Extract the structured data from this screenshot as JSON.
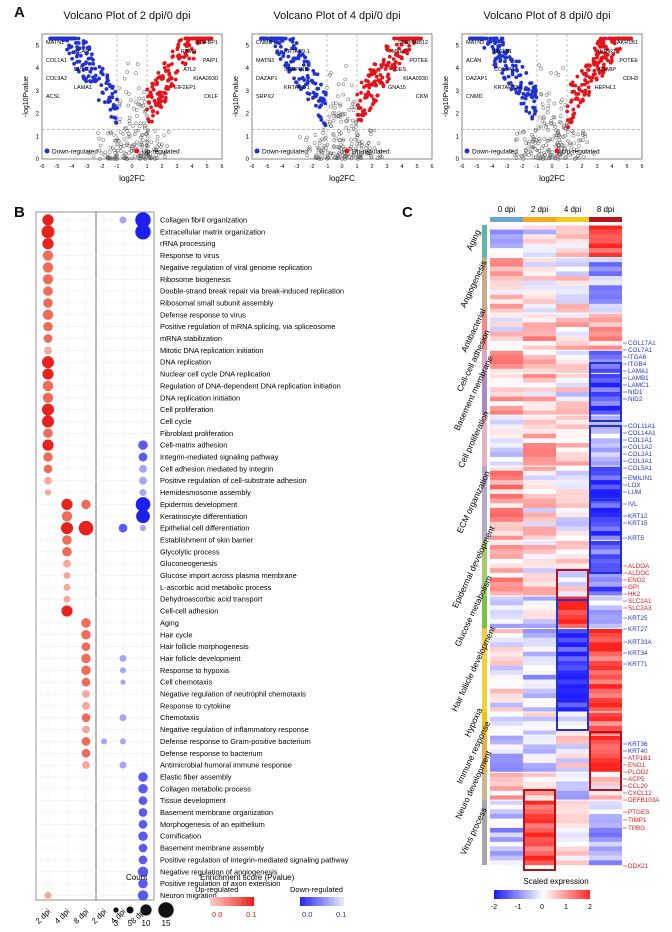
{
  "panels": {
    "a": "A",
    "b": "B",
    "c": "C"
  },
  "volcano": [
    {
      "title": "Volcano Plot of 2 dpi/0 dpi",
      "xlabel": "log2FC",
      "ylabel": "-log10Pvalue",
      "xticks": [
        "-6",
        "-5",
        "-4",
        "-3",
        "-2",
        "-1",
        "0",
        "1",
        "2",
        "3",
        "4",
        "5",
        "6"
      ],
      "yticks": [
        "0",
        "1",
        "2",
        "3",
        "4",
        "5"
      ],
      "down_labels": [
        "MATN1",
        "ACAN",
        "COL1A1",
        "EPYC",
        "COL9A2",
        "LAMA1",
        "ACSL"
      ],
      "up_labels": [
        "FGFBP1",
        "RBM3",
        "PAIP1",
        "ATL2",
        "KIAA0930",
        "EIF2EP1",
        "CKLF"
      ],
      "legend_down": "Down-regulated",
      "legend_up": "Up-regulated"
    },
    {
      "title": "Volcano Plot of 4 dpi/0 dpi",
      "xlabel": "log2FC",
      "ylabel": "-log10Pvalue",
      "xticks": [
        "-6",
        "-5",
        "-4",
        "-3",
        "-2",
        "-1",
        "0",
        "1",
        "2",
        "3",
        "4",
        "5",
        "6"
      ],
      "yticks": [
        "0",
        "1",
        "2",
        "3",
        "4",
        "5"
      ],
      "down_labels": [
        "CNMD",
        "KRTAP9-1",
        "MATN3",
        "SERPINB",
        "DAZAP1",
        "KRTAP7-1",
        "SRPX2"
      ],
      "up_labels": [
        "SERPINB12",
        "MYL1",
        "POTEE",
        "DES",
        "KIAA0930",
        "GNA15",
        "CKM"
      ],
      "legend_down": "Down-regulated",
      "legend_up": "Up-regulated"
    },
    {
      "title": "Volcano Plot of 8 dpi/0 dpi",
      "xlabel": "log2FC",
      "ylabel": "-log10Pvalue",
      "xticks": [
        "-6",
        "-5",
        "-4",
        "-3",
        "-2",
        "-1",
        "0",
        "1",
        "2",
        "3",
        "4",
        "5",
        "6"
      ],
      "yticks": [
        "0",
        "1",
        "2",
        "3",
        "4",
        "5"
      ],
      "down_labels": [
        "MATN3",
        "MATN1",
        "ACAN",
        "COL1A1",
        "DAZAP1",
        "KRTAP13-4",
        "CNMD"
      ],
      "up_labels": [
        "AKR1B1",
        "IL18R1",
        "POTEE",
        "CEMIP",
        "CDH3",
        "HEPHL1"
      ],
      "legend_down": "Down-regulated",
      "legend_up": "Up-regulated"
    }
  ],
  "chart_data": [
    {
      "type": "scatter",
      "title": "Volcano Plot of 2 dpi/0 dpi",
      "xlabel": "log2FC",
      "ylabel": "-log10Pvalue",
      "xlim": [
        -6,
        6
      ],
      "ylim": [
        0,
        5.5
      ]
    },
    {
      "type": "scatter",
      "title": "Volcano Plot of 4 dpi/0 dpi",
      "xlabel": "log2FC",
      "ylabel": "-log10Pvalue",
      "xlim": [
        -6,
        6
      ],
      "ylim": [
        0,
        5.5
      ]
    },
    {
      "type": "scatter",
      "title": "Volcano Plot of 8 dpi/0 dpi",
      "xlabel": "log2FC",
      "ylabel": "-log10Pvalue",
      "xlim": [
        -6,
        6
      ],
      "ylim": [
        0,
        5.5
      ]
    },
    {
      "type": "scatter",
      "title": "GO enrichment dot plot",
      "x_groups_up": [
        "2 dpi",
        "4 dpi",
        "8 dpi"
      ],
      "x_groups_down": [
        "2 dpi",
        "4 dpi",
        "8 dpi"
      ],
      "terms": [
        "Collagen fibril organization",
        "Extracellular matrix organization",
        "rRNA processing",
        "Response to virus",
        "Negative regulation of viral genome replication",
        "Ribosome biogenesis",
        "Double-strand break repair via break-induced replication",
        "Ribosomal small subunit assembly",
        "Defense response to virus",
        "Positive regulation of mRNA splicing, via spliceosome",
        "mRNA stabilization",
        "Mitotic DNA replication initiation",
        "DNA replication",
        "Nuclear cell cycle DNA replication",
        "Regulation of DNA-dependent DNA replication initiation",
        "DNA replication initiation",
        "Cell proliferation",
        "Cell cycle",
        "Fibroblast proliferation",
        "Cell-matrix adhesion",
        "Integrin-mediated signaling pathway",
        "Cell adhesion mediated by integrin",
        "Positive regulation of cell-substrate adhesion",
        "Hemidesmosome assembly",
        "Epidermis development",
        "Keratinocyte differentiation",
        "Epithelial cell differentiation",
        "Establishment of skin barrier",
        "Glycolytic process",
        "Gluconeogenesis",
        "Glucose import across plasma membrane",
        "L-ascorbic acid metabolic process",
        "Dehydroascorbic acid transport",
        "Cell-cell adhesion",
        "Aging",
        "Hair cycle",
        "Hair follicle morphogenesis",
        "Hair follicle development",
        "Response to hypoxia",
        "Cell chemotaxis",
        "Negative regulation of neutrophil chemotaxis",
        "Response to cytokine",
        "Chemotaxis",
        "Negative regulation of inflammatory response",
        "Defense response to Gram-positive bacterium",
        "Defense response to bacterium",
        "Antimicrobial humoral immune response",
        "Elastic fiber assembly",
        "Collagen metabolic process",
        "Tissue development",
        "Basement membrane organization",
        "Morphogenesis of an epithelium",
        "Cornification",
        "Basement membrane assembly",
        "Positive regulation of integrin-mediated signaling pathway",
        "Negative regulation of angiogenesis",
        "Positive regulation of axon extension",
        "Neuron migration"
      ],
      "up_points": [
        [
          0,
          1,
          12
        ],
        [
          0,
          0,
          10
        ],
        [
          0,
          2,
          10
        ],
        [
          0,
          3,
          9
        ],
        [
          0,
          4,
          9
        ],
        [
          0,
          5,
          9
        ],
        [
          0,
          6,
          8
        ],
        [
          0,
          7,
          8
        ],
        [
          0,
          8,
          9
        ],
        [
          0,
          9,
          8
        ],
        [
          0,
          10,
          7
        ],
        [
          0,
          11,
          6
        ],
        [
          0,
          12,
          11
        ],
        [
          0,
          13,
          10
        ],
        [
          0,
          14,
          9
        ],
        [
          0,
          15,
          9
        ],
        [
          0,
          16,
          11
        ],
        [
          0,
          17,
          11
        ],
        [
          0,
          18,
          8
        ],
        [
          0,
          19,
          10
        ],
        [
          0,
          20,
          8
        ],
        [
          0,
          21,
          7
        ],
        [
          0,
          22,
          6
        ],
        [
          0,
          23,
          4
        ],
        [
          0,
          57,
          5
        ],
        [
          1,
          24,
          10
        ],
        [
          1,
          25,
          9
        ],
        [
          1,
          26,
          11
        ],
        [
          1,
          27,
          8
        ],
        [
          1,
          28,
          8
        ],
        [
          1,
          29,
          6
        ],
        [
          1,
          30,
          5
        ],
        [
          1,
          31,
          5
        ],
        [
          1,
          32,
          5
        ],
        [
          1,
          33,
          10
        ],
        [
          2,
          24,
          8
        ],
        [
          2,
          26,
          14
        ],
        [
          2,
          34,
          8
        ],
        [
          2,
          35,
          8
        ],
        [
          2,
          36,
          7
        ],
        [
          2,
          37,
          8
        ],
        [
          2,
          38,
          8
        ],
        [
          2,
          39,
          7
        ],
        [
          2,
          40,
          6
        ],
        [
          2,
          41,
          6
        ],
        [
          2,
          42,
          7
        ],
        [
          2,
          43,
          6
        ],
        [
          2,
          44,
          7
        ],
        [
          2,
          45,
          7
        ],
        [
          2,
          46,
          6
        ]
      ],
      "down_points": [
        [
          1,
          0,
          5
        ],
        [
          2,
          0,
          15
        ],
        [
          2,
          1,
          15
        ],
        [
          2,
          19,
          8
        ],
        [
          2,
          20,
          7
        ],
        [
          2,
          21,
          6
        ],
        [
          2,
          22,
          6
        ],
        [
          2,
          23,
          5
        ],
        [
          2,
          24,
          14
        ],
        [
          2,
          25,
          13
        ],
        [
          2,
          26,
          4
        ],
        [
          1,
          26,
          7
        ],
        [
          1,
          37,
          5
        ],
        [
          1,
          38,
          4
        ],
        [
          1,
          39,
          3
        ],
        [
          1,
          42,
          5
        ],
        [
          0,
          44,
          4
        ],
        [
          1,
          44,
          4
        ],
        [
          1,
          46,
          5
        ],
        [
          2,
          47,
          8
        ],
        [
          2,
          48,
          8
        ],
        [
          2,
          49,
          7
        ],
        [
          2,
          50,
          7
        ],
        [
          2,
          51,
          7
        ],
        [
          2,
          52,
          8
        ],
        [
          2,
          53,
          7
        ],
        [
          2,
          54,
          7
        ],
        [
          2,
          55,
          9
        ],
        [
          2,
          56,
          8
        ],
        [
          2,
          57,
          9
        ]
      ],
      "count_legend": {
        "title": "Count",
        "values": [
          3,
          5,
          10,
          15
        ]
      },
      "enrichment_legend": {
        "title": "Enrichment score (Pvalue)",
        "up_label": "Up-regulated",
        "down_label": "Down-regulated",
        "range": [
          0.0,
          0.1
        ]
      }
    },
    {
      "type": "heatmap",
      "title": "Scaled expression",
      "columns": [
        "0 dpi",
        "2 dpi",
        "4 dpi",
        "8 dpi"
      ],
      "column_colors": [
        "#6aa3d6",
        "#f6a623",
        "#f2c91e",
        "#b5121b"
      ],
      "groups": [
        {
          "name": "Aging",
          "bar": "#5bb9a5"
        },
        {
          "name": "Angiogenesis",
          "bar": "#c9ab88"
        },
        {
          "name": "Antibacterial",
          "bar": "#f28a8a"
        },
        {
          "name": "Cell-cell adhesion",
          "bar": "#d9a6c9"
        },
        {
          "name": "Basement membrane",
          "bar": "#a88ac0"
        },
        {
          "name": "Cell proliferation",
          "bar": "#e6b3c3"
        },
        {
          "name": "ECM organization",
          "bar": "#b6a8c9"
        },
        {
          "name": "Epidermal development",
          "bar": "#a7c86b"
        },
        {
          "name": "Glucose metabolism",
          "bar": "#7ac143"
        },
        {
          "name": "Hair follicle development",
          "bar": "#f4d03f"
        },
        {
          "name": "Hypoxia",
          "bar": "#f1c40f"
        },
        {
          "name": "Immune response",
          "bar": "#e3b14b"
        },
        {
          "name": "Neuro development",
          "bar": "#c7b88e"
        },
        {
          "name": "Virus process",
          "bar": "#a6a6a6"
        }
      ],
      "gene_labels_blue": [
        "COL17A1",
        "COL7A1",
        "ITGA6",
        "ITGB4",
        "LAMA1",
        "LAMB1",
        "LAMC1",
        "NID1",
        "NID2",
        "COL11A1",
        "COL14A1",
        "COL1A1",
        "COL1A2",
        "COL2A1",
        "COL3A1",
        "COL5A1",
        "EMILIN1",
        "LOX",
        "LUM",
        "IVL",
        "KRT12",
        "KRT15",
        "KRT5",
        "KRT25",
        "KRT27",
        "KRT33A",
        "KRT34",
        "KRT71",
        "KRT36",
        "KRT40"
      ],
      "gene_labels_red": [
        "ALDOA",
        "ALDOC",
        "ENO2",
        "GPI",
        "HK2",
        "SLC2A1",
        "SLC2A3",
        "ATP1B1",
        "ENO1",
        "PLOD2",
        "ACP5",
        "CCL20",
        "CXCL12",
        "DEFB103A",
        "PTGES",
        "TIMP1",
        "TPBG",
        "DDX21"
      ],
      "scale": {
        "title": "Scaled expression",
        "ticks": [
          "-2",
          "-1",
          "0",
          "1",
          "2"
        ]
      }
    }
  ]
}
